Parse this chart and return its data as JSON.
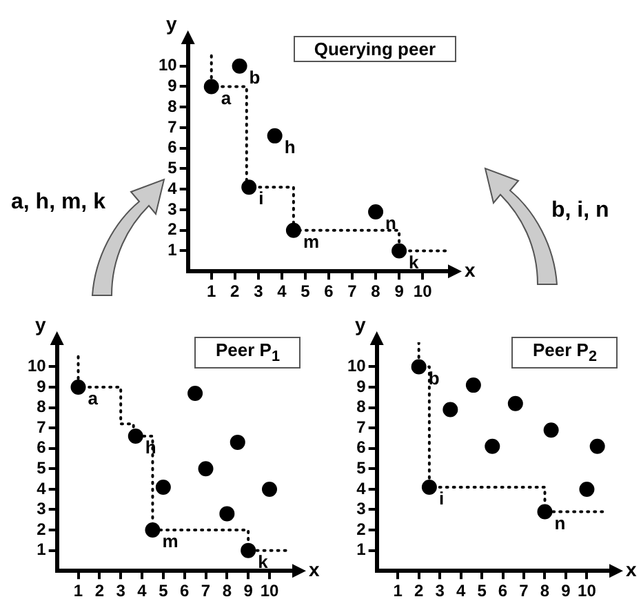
{
  "chart_data": [
    {
      "type": "scatter",
      "title": "Querying peer",
      "xlabel": "x",
      "ylabel": "y",
      "xlim": [
        0,
        11.2
      ],
      "ylim": [
        0,
        11.2
      ],
      "xticks": [
        1,
        2,
        3,
        4,
        5,
        6,
        7,
        8,
        9,
        10
      ],
      "yticks": [
        1,
        2,
        3,
        4,
        5,
        6,
        7,
        8,
        9,
        10
      ],
      "grid": false,
      "legend": false,
      "series": [
        {
          "type": "line",
          "color": "#000000",
          "line_style": "dotted",
          "marker": "none",
          "x": [
            1,
            1,
            2.5,
            2.5,
            4.5,
            4.5,
            9,
            9,
            11
          ],
          "values": [
            10.5,
            9,
            9,
            4.1,
            4.1,
            2,
            2,
            1,
            1
          ]
        },
        {
          "type": "scatter",
          "color": "#000000",
          "marker": "circle",
          "x": [
            1,
            2.2,
            3.7,
            2.6,
            4.5,
            8,
            9
          ],
          "values": [
            9,
            10,
            6.6,
            4.1,
            2,
            2.9,
            1
          ]
        }
      ],
      "annotations": [
        {
          "text": "a",
          "x": 1,
          "y": 9
        },
        {
          "text": "b",
          "x": 2.2,
          "y": 10
        },
        {
          "text": "h",
          "x": 3.7,
          "y": 6.6
        },
        {
          "text": "i",
          "x": 2.6,
          "y": 4.1
        },
        {
          "text": "m",
          "x": 4.5,
          "y": 2
        },
        {
          "text": "n",
          "x": 8,
          "y": 2.9
        },
        {
          "text": "k",
          "x": 9,
          "y": 1
        },
        "a, h, m, k",
        "b, i, n"
      ]
    },
    {
      "type": "scatter",
      "title": "Peer P$_{1}$",
      "xlabel": "x",
      "ylabel": "y",
      "xlim": [
        0,
        11.2
      ],
      "ylim": [
        0,
        11.2
      ],
      "xticks": [
        1,
        2,
        3,
        4,
        5,
        6,
        7,
        8,
        9,
        10
      ],
      "yticks": [
        1,
        2,
        3,
        4,
        5,
        6,
        7,
        8,
        9,
        10
      ],
      "grid": false,
      "legend": false,
      "series": [
        {
          "type": "line",
          "color": "#000000",
          "line_style": "dotted",
          "marker": "none",
          "x": [
            1,
            1,
            3,
            3,
            3.6,
            3.6,
            4.5,
            4.5,
            9,
            9,
            11
          ],
          "values": [
            10.5,
            9,
            9,
            7.2,
            7.2,
            6.6,
            6.6,
            2,
            2,
            1,
            1
          ]
        },
        {
          "type": "scatter",
          "color": "#000000",
          "marker": "circle",
          "x": [
            1,
            3.7,
            4.5,
            5,
            6.5,
            7,
            8,
            8.5,
            9,
            10
          ],
          "values": [
            9,
            6.6,
            2,
            4.1,
            8.7,
            5,
            2.8,
            6.3,
            1,
            4
          ]
        }
      ],
      "annotations": [
        {
          "text": "a",
          "x": 1,
          "y": 9
        },
        {
          "text": "h",
          "x": 3.7,
          "y": 6.6
        },
        {
          "text": "m",
          "x": 4.5,
          "y": 2
        },
        {
          "text": "k",
          "x": 9,
          "y": 1
        }
      ]
    },
    {
      "type": "scatter",
      "title": "Peer P$_{2}$",
      "xlabel": "x",
      "ylabel": "y",
      "xlim": [
        0,
        11.2
      ],
      "ylim": [
        0,
        11.2
      ],
      "xticks": [
        1,
        2,
        3,
        4,
        5,
        6,
        7,
        8,
        9,
        10
      ],
      "yticks": [
        1,
        2,
        3,
        4,
        5,
        6,
        7,
        8,
        9,
        10
      ],
      "grid": false,
      "legend": false,
      "series": [
        {
          "type": "line",
          "color": "#000000",
          "line_style": "dotted",
          "marker": "none",
          "x": [
            2,
            2,
            2.5,
            2.5,
            8,
            8,
            11
          ],
          "values": [
            11.2,
            10,
            10,
            4.1,
            4.1,
            2.9,
            2.9
          ]
        },
        {
          "type": "scatter",
          "color": "#000000",
          "marker": "circle",
          "x": [
            2,
            2.5,
            3.5,
            4.6,
            5.5,
            6.6,
            8,
            8.3,
            10,
            10.5
          ],
          "values": [
            10,
            4.1,
            7.9,
            9.1,
            6.1,
            8.2,
            2.9,
            6.9,
            4,
            6.1
          ]
        }
      ],
      "annotations": [
        {
          "text": "b",
          "x": 2,
          "y": 10
        },
        {
          "text": "i",
          "x": 2.5,
          "y": 4.1
        },
        {
          "text": "n",
          "x": 8,
          "y": 2.9
        }
      ]
    }
  ]
}
